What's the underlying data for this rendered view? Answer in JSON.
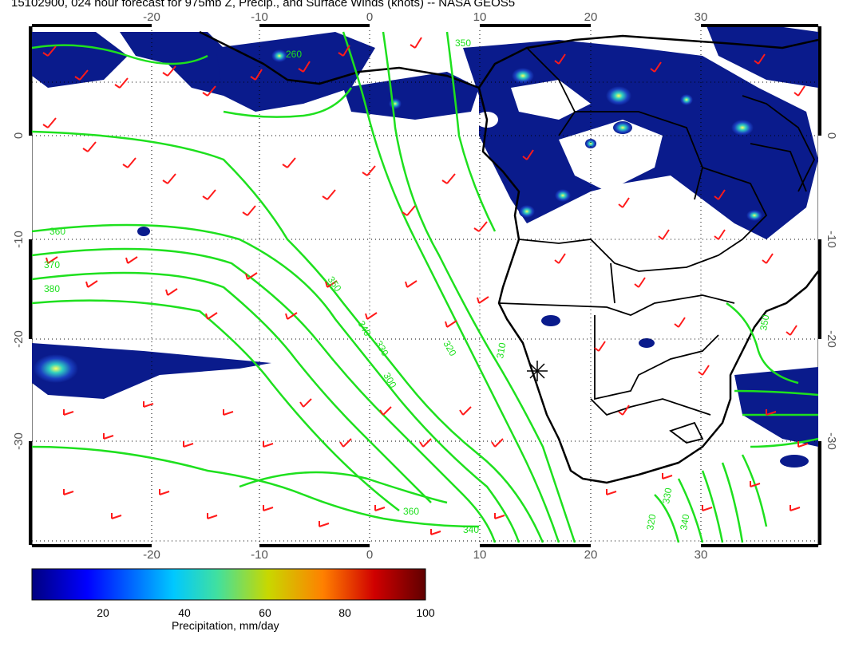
{
  "title": "15102900, 024 hour forecast for 975mb Z, Precip., and Surface Winds (knots) -- NASA GEOS5",
  "map": {
    "lon_ticks": [
      "-20",
      "-10",
      "0",
      "10",
      "20",
      "30"
    ],
    "lat_ticks": [
      "0",
      "-10",
      "-20",
      "-30"
    ],
    "contour_labels": [
      "360",
      "370",
      "380",
      "350",
      "340",
      "330",
      "320",
      "310",
      "300",
      "260",
      "350",
      "360",
      "340",
      "330",
      "320",
      "350",
      "340"
    ],
    "colors": {
      "contour": "#1ee01e",
      "barb": "#ff1a1a",
      "coast": "#000000",
      "precip_low": "#0a1b8c"
    }
  },
  "colorbar": {
    "ticks": [
      "20",
      "40",
      "60",
      "80",
      "100"
    ],
    "label": "Precipitation, mm/day",
    "range": [
      0,
      100
    ],
    "stops": [
      "#000080",
      "#0000ff",
      "#00c8ff",
      "#40e0a0",
      "#c8d800",
      "#ff8000",
      "#d00000",
      "#600000"
    ]
  }
}
